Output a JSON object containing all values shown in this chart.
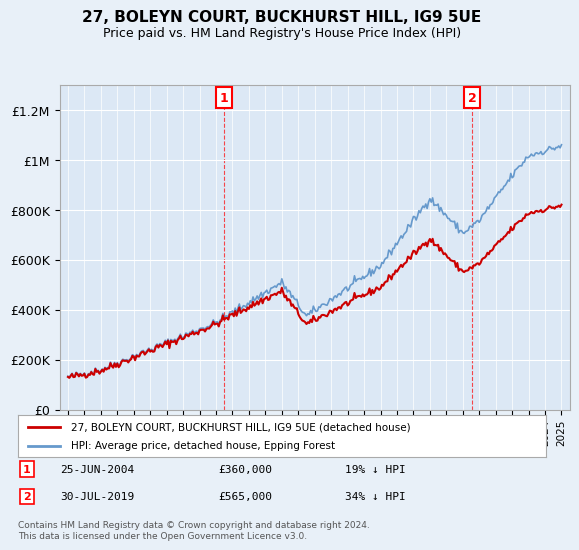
{
  "title": "27, BOLEYN COURT, BUCKHURST HILL, IG9 5UE",
  "subtitle": "Price paid vs. HM Land Registry's House Price Index (HPI)",
  "ylabel_ticks": [
    "£0",
    "£200K",
    "£400K",
    "£600K",
    "£800K",
    "£1M",
    "£1.2M"
  ],
  "ytick_values": [
    0,
    200000,
    400000,
    600000,
    800000,
    1000000,
    1200000
  ],
  "ylim": [
    0,
    1300000
  ],
  "sale1": {
    "date_num": 2004.48,
    "price": 360000,
    "label": "1"
  },
  "sale2": {
    "date_num": 2019.58,
    "price": 565000,
    "label": "2"
  },
  "legend_house": "27, BOLEYN COURT, BUCKHURST HILL, IG9 5UE (detached house)",
  "legend_hpi": "HPI: Average price, detached house, Epping Forest",
  "annotation1": "1     25-JUN-2004          £360,000          19% ↓ HPI",
  "annotation2": "2     30-JUL-2019          £565,000          34% ↓ HPI",
  "footer": "Contains HM Land Registry data © Crown copyright and database right 2024.\nThis data is licensed under the Open Government Licence v3.0.",
  "house_color": "#cc0000",
  "hpi_color": "#6699cc",
  "bg_color": "#e8f0f8",
  "plot_bg": "#dce8f5"
}
